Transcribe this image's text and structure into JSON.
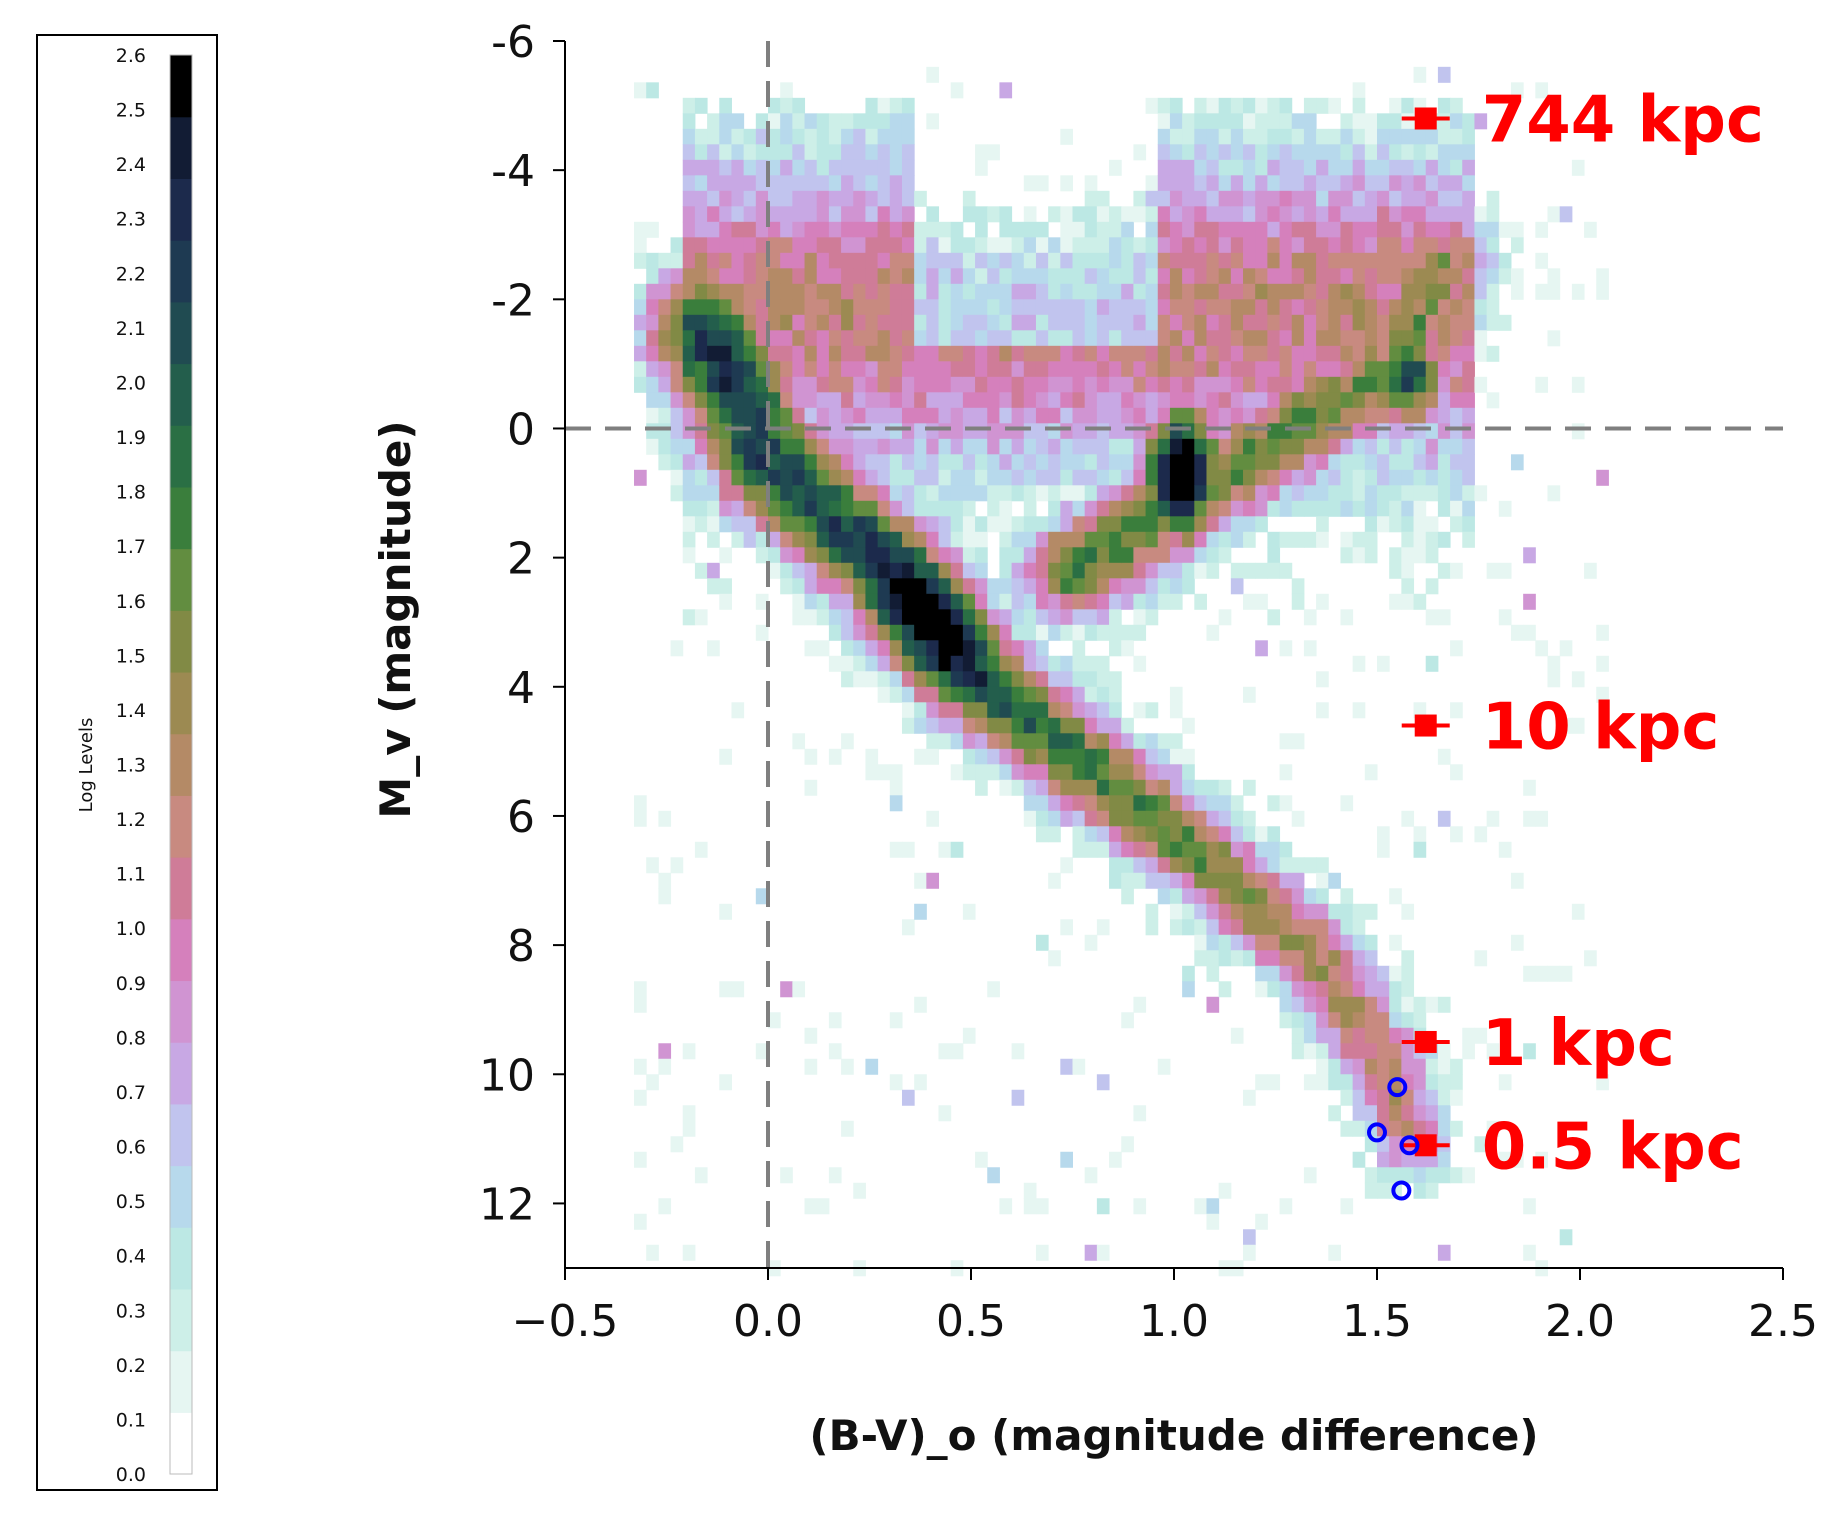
{
  "chart_data": {
    "type": "heatmap",
    "title": "",
    "xlabel": "(B-V)_o (magnitude difference)",
    "ylabel": "M_v (magnitude)",
    "xlim": [
      -0.5,
      2.5
    ],
    "ylim": [
      13,
      -6
    ],
    "y_inverted": true,
    "xticks": [
      -0.5,
      0.0,
      0.5,
      1.0,
      1.5,
      2.0,
      2.5
    ],
    "xtick_labels": [
      "−0.5",
      "0.0",
      "0.5",
      "1.0",
      "1.5",
      "2.0",
      "2.5"
    ],
    "yticks": [
      -6,
      -4,
      -2,
      0,
      2,
      4,
      6,
      8,
      10,
      12
    ],
    "ytick_labels": [
      "-6",
      "-4",
      "-2",
      "0",
      "2",
      "4",
      "6",
      "8",
      "10",
      "12"
    ],
    "reference_lines": [
      {
        "orientation": "vertical",
        "x": 0.0,
        "style": "dashed",
        "color": "#7f7f7f"
      },
      {
        "orientation": "horizontal",
        "y": 0.0,
        "style": "dashed",
        "color": "#7f7f7f"
      }
    ],
    "density_features": [
      {
        "name": "main-sequence",
        "path_bv_mv": [
          [
            -0.15,
            -1.5
          ],
          [
            0.0,
            0.5
          ],
          [
            0.3,
            2.2
          ],
          [
            0.5,
            3.8
          ],
          [
            0.8,
            5.3
          ],
          [
            1.1,
            6.8
          ],
          [
            1.35,
            8.2
          ],
          [
            1.52,
            9.8
          ],
          [
            1.58,
            11.0
          ]
        ],
        "peak_log_level": 2.6
      },
      {
        "name": "red-clump",
        "center_bv": 1.02,
        "center_mv": 0.7,
        "peak_log_level": 2.6
      },
      {
        "name": "red-giant-branch",
        "path_bv_mv": [
          [
            0.75,
            2.2
          ],
          [
            1.0,
            1.2
          ],
          [
            1.3,
            0.0
          ],
          [
            1.55,
            -1.0
          ],
          [
            1.65,
            -2.5
          ]
        ],
        "peak_log_level": 1.9
      }
    ],
    "colorbar": {
      "title": "Log Levels",
      "levels": [
        0.0,
        0.1,
        0.2,
        0.3,
        0.4,
        0.5,
        0.6,
        0.7,
        0.8,
        0.9,
        1.0,
        1.1,
        1.2,
        1.3,
        1.4,
        1.5,
        1.6,
        1.7,
        1.8,
        1.9,
        2.0,
        2.1,
        2.2,
        2.3,
        2.4,
        2.5,
        2.6
      ],
      "level_labels": [
        "0.0",
        "0.1",
        "0.2",
        "0.3",
        "0.4",
        "0.5",
        "0.6",
        "0.7",
        "0.8",
        "0.9",
        "1.0",
        "1.1",
        "1.2",
        "1.3",
        "1.4",
        "1.5",
        "1.6",
        "1.7",
        "1.8",
        "1.9",
        "2.0",
        "2.1",
        "2.2",
        "2.3",
        "2.4",
        "2.5",
        "2.6"
      ],
      "colors": [
        "#ffffff",
        "#e6f6f2",
        "#cdefe8",
        "#bce8e4",
        "#b7d9ec",
        "#c1c4ee",
        "#c8a8e4",
        "#d094d2",
        "#d580bc",
        "#cf7c98",
        "#c88a80",
        "#b48a66",
        "#9c8a52",
        "#818a45",
        "#628d40",
        "#3a7e3c",
        "#2a6f44",
        "#235e4c",
        "#204b51",
        "#1e3a52",
        "#1c2a4c",
        "#121c34",
        "#000000"
      ]
    },
    "distance_markers": [
      {
        "label": "744 kpc",
        "x": 1.62,
        "y": -4.8
      },
      {
        "label": "10 kpc",
        "x": 1.62,
        "y": 4.6
      },
      {
        "label": "1 kpc",
        "x": 1.62,
        "y": 9.5
      },
      {
        "label": "0.5 kpc",
        "x": 1.62,
        "y": 11.1
      }
    ],
    "marker_color": "#ff0000",
    "highlighted_stars": {
      "marker": "open-circle",
      "color": "#0000ff",
      "points": [
        {
          "x": 1.55,
          "y": 10.2
        },
        {
          "x": 1.5,
          "y": 10.9
        },
        {
          "x": 1.58,
          "y": 11.1
        },
        {
          "x": 1.56,
          "y": 11.8
        }
      ]
    }
  }
}
